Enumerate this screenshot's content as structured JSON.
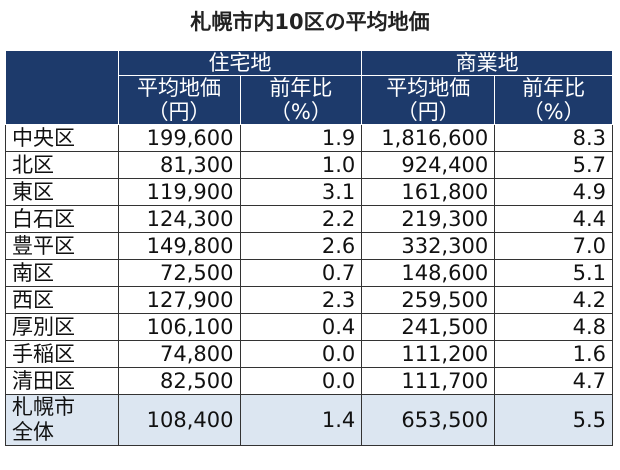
{
  "title": "札幌市内10区の平均地価",
  "header": {
    "groups": [
      "住宅地",
      "商業地"
    ],
    "columns": [
      [
        "平均地価",
        "（円）"
      ],
      [
        "前年比",
        "（%）"
      ],
      [
        "平均地価",
        "（円）"
      ],
      [
        "前年比",
        "（%）"
      ]
    ]
  },
  "rows": [
    [
      "中央区",
      "199,600",
      "1.9",
      "1,816,600",
      "8.3"
    ],
    [
      "北区",
      "81,300",
      "1.0",
      "924,400",
      "5.7"
    ],
    [
      "東区",
      "119,900",
      "3.1",
      "161,800",
      "4.9"
    ],
    [
      "白石区",
      "124,300",
      "2.2",
      "219,300",
      "4.4"
    ],
    [
      "豊平区",
      "149,800",
      "2.6",
      "332,300",
      "7.0"
    ],
    [
      "南区",
      "72,500",
      "0.7",
      "148,600",
      "5.1"
    ],
    [
      "西区",
      "127,900",
      "2.3",
      "259,500",
      "4.2"
    ],
    [
      "厚別区",
      "106,100",
      "0.4",
      "241,500",
      "4.8"
    ],
    [
      "手稲区",
      "74,800",
      "0.0",
      "111,200",
      "1.6"
    ],
    [
      "清田区",
      "82,500",
      "0.0",
      "111,700",
      "4.7"
    ]
  ],
  "total": {
    "label": [
      "札幌市",
      "全体"
    ],
    "cells": [
      "108,400",
      "1.4",
      "653,500",
      "5.5"
    ]
  }
}
